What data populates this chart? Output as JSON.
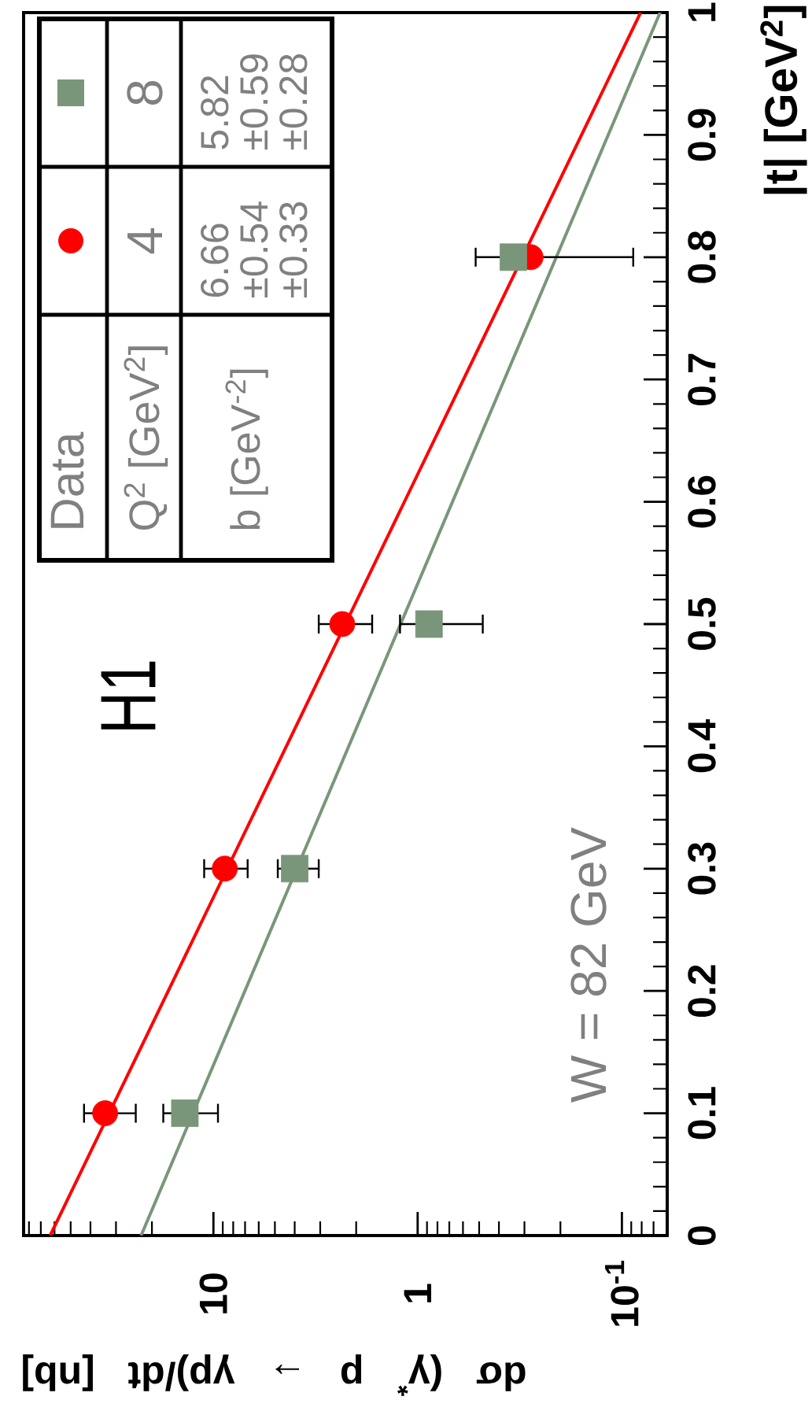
{
  "chart_data": {
    "type": "scatter",
    "xlabel": "dσ (γ$^{*}$ p → γp)/dt [nb]",
    "ylabel": "|t| [GeV$^{2}$]",
    "annotations": [
      "H1",
      "W = 82 GeV",
      "Data",
      "Q$^{2}$ [GeV$^{2}$]",
      "b [GeV$^{-2}$]",
      "6.66",
      "±0.54",
      "±0.33",
      "5.82",
      "±0.59",
      "±0.28"
    ],
    "xlim": [
      85,
      0.06
    ],
    "xticks": [
      10,
      1,
      {
        "value": 0.1,
        "label": "10$^{-1}$"
      }
    ],
    "log": "x",
    "ylim": [
      0,
      1
    ],
    "yticks": [
      0,
      0.1,
      0.2,
      0.3,
      0.4,
      0.5,
      0.6,
      0.7,
      0.8,
      0.9,
      1
    ],
    "legend": "top left",
    "series": [
      {
        "name": "4",
        "color": "#ff0000",
        "marker": "circle",
        "x": [
          33.9,
          8.8,
          2.34,
          0.28
        ],
        "values": [
          0.1,
          0.3,
          0.5,
          0.8
        ],
        "xerrors": [
          [
            24,
            43
          ],
          [
            6.8,
            11.1
          ],
          [
            1.67,
            3.05
          ],
          null
        ]
      },
      {
        "name": "8",
        "color": "#7a967a",
        "marker": "square",
        "x": [
          13.8,
          4.0,
          0.88,
          0.34
        ],
        "values": [
          0.1,
          0.3,
          0.5,
          0.8
        ],
        "xerrors": [
          [
            9.5,
            17.6
          ],
          [
            3.05,
            4.84
          ],
          [
            0.48,
            1.22
          ],
          [
            0.088,
            0.52
          ]
        ]
      },
      {
        "type": "line",
        "color": "#ff0000",
        "x": [
          63,
          0.081
        ],
        "values": [
          0,
          1
        ]
      },
      {
        "type": "line",
        "color": "#7a967a",
        "x": [
          22.6,
          0.065
        ],
        "values": [
          0,
          1
        ]
      }
    ]
  }
}
